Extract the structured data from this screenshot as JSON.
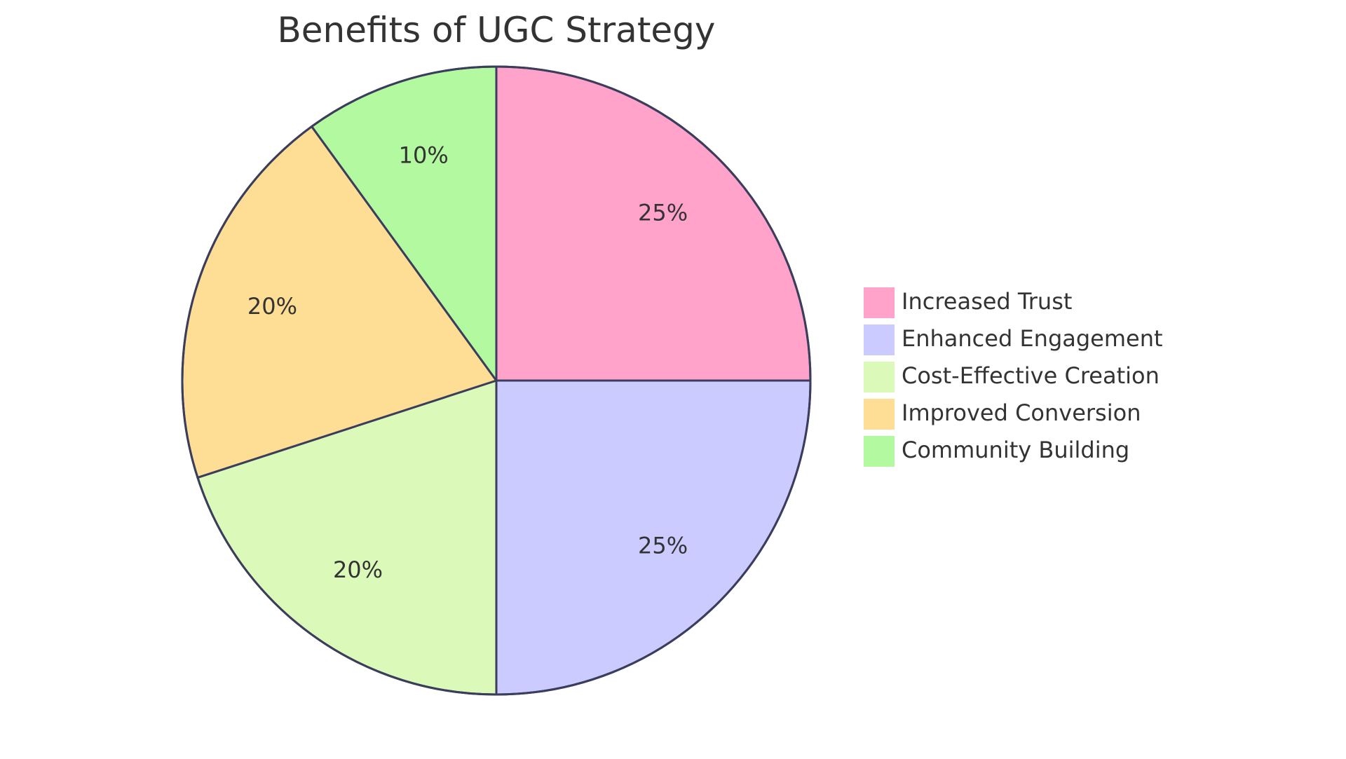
{
  "chart_data": {
    "type": "pie",
    "title": "Benefits of UGC Strategy",
    "slices": [
      {
        "label": "Increased Trust",
        "value": 25,
        "display": "25%",
        "color": "#ffa3cb"
      },
      {
        "label": "Enhanced Engagement",
        "value": 25,
        "display": "25%",
        "color": "#cbcbff"
      },
      {
        "label": "Cost-Effective Creation",
        "value": 20,
        "display": "20%",
        "color": "#dbfab9"
      },
      {
        "label": "Improved Conversion",
        "value": 20,
        "display": "20%",
        "color": "#fedd94"
      },
      {
        "label": "Community Building",
        "value": 10,
        "display": "10%",
        "color": "#b2f9a0"
      }
    ],
    "legend_position": "right"
  }
}
